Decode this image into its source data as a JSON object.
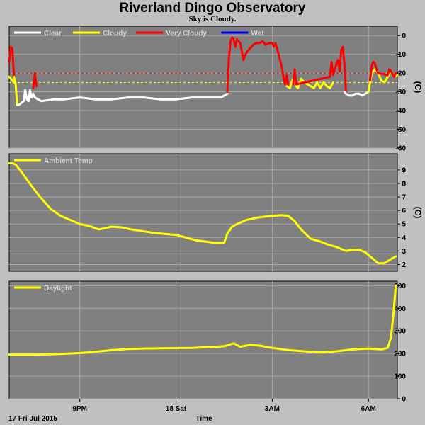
{
  "header": {
    "title": "Riverland Dingo Observatory",
    "subtitle": "Sky is Cloudy."
  },
  "colors": {
    "background": "#c0c0c0",
    "plot_bg": "#808080",
    "grid": "#a8a8a8",
    "clear": "#ffffff",
    "cloudy": "#ffff00",
    "very_cloudy": "#ff0000",
    "wet": "#0000ff",
    "threshold_red": "#ff0000",
    "threshold_yellow": "#ffff00"
  },
  "x_axis": {
    "label": "Time",
    "start_label": "17 Fri Jul 2015",
    "ticks": [
      {
        "t": 21,
        "label": "9PM"
      },
      {
        "t": 24,
        "label": "18 Sat"
      },
      {
        "t": 27,
        "label": "3AM"
      },
      {
        "t": 30,
        "label": "6AM"
      }
    ],
    "range": [
      18.8,
      30.9
    ]
  },
  "chart_data": [
    {
      "type": "line",
      "id": "sky",
      "legend": [
        "Clear",
        "Cloudy",
        "Very Cloudy",
        "Wet"
      ],
      "ylabel": "(C)",
      "ylim": [
        -60,
        5
      ],
      "yticks": [
        0,
        -10,
        -20,
        -30,
        -40,
        -50,
        -60
      ],
      "thresholds": [
        {
          "value": -20,
          "color": "#ff0000"
        },
        {
          "value": -25,
          "color": "#ffff00"
        }
      ],
      "series": [
        {
          "name": "Cloudy",
          "x": [
            18.8,
            18.95
          ],
          "y": [
            -22,
            -25
          ]
        },
        {
          "name": "Very Cloudy",
          "x": [
            18.8,
            18.85,
            18.9,
            18.95
          ],
          "y": [
            -14,
            -6,
            -7,
            -22
          ]
        },
        {
          "name": "Cloudy",
          "x": [
            18.95,
            19.0,
            19.05
          ],
          "y": [
            -22,
            -26,
            -37
          ]
        },
        {
          "name": "Clear",
          "x": [
            19.05,
            19.1,
            19.25,
            19.3,
            19.35,
            19.4,
            19.45,
            19.5,
            19.55,
            19.6,
            19.8,
            20.2,
            20.5,
            21.0,
            21.5,
            22.0,
            22.5,
            23.0,
            23.5,
            24.0,
            24.5,
            25.0,
            25.4,
            25.6
          ],
          "y": [
            -37,
            -37,
            -35,
            -29,
            -34,
            -35,
            -29,
            -33,
            -31,
            -33,
            -35,
            -34,
            -34,
            -33,
            -34,
            -34,
            -33,
            -33,
            -34,
            -34,
            -33,
            -33,
            -33,
            -31
          ]
        },
        {
          "name": "Very Cloudy",
          "x": [
            19.55,
            19.6,
            19.65
          ],
          "y": [
            -28,
            -20,
            -27
          ]
        },
        {
          "name": "Very Cloudy",
          "x": [
            25.6,
            25.65,
            25.7,
            25.75,
            25.8,
            25.85,
            25.9,
            26.0,
            26.1,
            26.2,
            26.3,
            26.4,
            26.5,
            26.6,
            26.7,
            26.8,
            26.9,
            27.0,
            27.05,
            27.1,
            27.2,
            27.3,
            27.35,
            27.4,
            27.45,
            27.5
          ],
          "y": [
            -30,
            -12,
            -3,
            -1,
            -2,
            -6,
            -2,
            -4,
            -13,
            -9,
            -7,
            -5,
            -4,
            -4,
            -3,
            -5,
            -4,
            -4,
            -6,
            -4,
            -10,
            -17,
            -22,
            -26,
            -21,
            -27
          ]
        },
        {
          "name": "Cloudy",
          "x": [
            27.45,
            27.55,
            27.6,
            27.7,
            27.75,
            27.8,
            27.9,
            28.0,
            28.1,
            28.2,
            28.3,
            28.4,
            28.5,
            28.6,
            28.7,
            28.8,
            28.9
          ],
          "y": [
            -27,
            -28,
            -25,
            -22,
            -27,
            -28,
            -23,
            -25,
            -26,
            -27,
            -28,
            -25,
            -28,
            -25,
            -27,
            -28,
            -25
          ]
        },
        {
          "name": "Very Cloudy",
          "x": [
            27.65,
            27.7,
            27.75,
            28.8,
            28.85,
            28.9,
            28.95,
            29.0,
            29.05,
            29.1,
            29.15,
            29.2,
            29.25,
            29.3
          ],
          "y": [
            -26,
            -18,
            -26,
            -22,
            -14,
            -21,
            -18,
            -15,
            -13,
            -19,
            -8,
            -6,
            -15,
            -30
          ]
        },
        {
          "name": "Clear",
          "x": [
            29.25,
            29.3,
            29.4,
            29.5,
            29.6,
            29.7,
            29.8,
            29.9,
            30.0
          ],
          "y": [
            -30,
            -31,
            -32,
            -32,
            -31,
            -31,
            -32,
            -31,
            -30
          ]
        },
        {
          "name": "Cloudy",
          "x": [
            30.0,
            30.05,
            30.1,
            30.2,
            30.3,
            30.4,
            30.5,
            30.6,
            30.7,
            30.8,
            30.9
          ],
          "y": [
            -30,
            -25,
            -20,
            -18,
            -20,
            -24,
            -25,
            -22,
            -19,
            -22,
            -21
          ]
        },
        {
          "name": "Very Cloudy",
          "x": [
            30.05,
            30.1,
            30.15,
            30.2,
            30.25,
            30.3,
            30.6,
            30.65,
            30.7,
            30.8,
            30.85
          ],
          "y": [
            -24,
            -16,
            -14,
            -15,
            -18,
            -20,
            -21,
            -18,
            -19,
            -22,
            -20
          ]
        }
      ]
    },
    {
      "type": "line",
      "id": "ambient",
      "legend": [
        "Ambient Temp"
      ],
      "ylabel": "(C)",
      "ylim": [
        1.5,
        10.2
      ],
      "yticks": [
        2,
        3,
        4,
        5,
        6,
        7,
        8,
        9
      ],
      "series": [
        {
          "name": "Ambient Temp",
          "color": "#ffff00",
          "x": [
            18.8,
            18.9,
            19.0,
            19.2,
            19.5,
            19.8,
            20.1,
            20.4,
            20.8,
            21.0,
            21.3,
            21.6,
            21.8,
            22.0,
            22.3,
            22.6,
            23.0,
            23.3,
            23.7,
            24.0,
            24.3,
            24.6,
            24.9,
            25.2,
            25.5,
            25.6,
            25.75,
            25.9,
            26.2,
            26.6,
            27.0,
            27.3,
            27.5,
            27.7,
            27.9,
            28.2,
            28.5,
            28.7,
            29.0,
            29.3,
            29.5,
            29.7,
            29.9,
            30.1,
            30.3,
            30.5,
            30.7,
            30.85
          ],
          "y": [
            9.5,
            9.5,
            9.4,
            8.8,
            7.8,
            6.9,
            6.1,
            5.6,
            5.2,
            5.0,
            4.85,
            4.6,
            4.7,
            4.8,
            4.75,
            4.6,
            4.45,
            4.35,
            4.25,
            4.2,
            4.0,
            3.8,
            3.7,
            3.6,
            3.6,
            4.3,
            4.8,
            5.0,
            5.3,
            5.5,
            5.6,
            5.65,
            5.6,
            5.2,
            4.6,
            3.9,
            3.7,
            3.5,
            3.3,
            3.0,
            3.1,
            3.1,
            2.9,
            2.5,
            2.1,
            2.1,
            2.4,
            2.6
          ]
        }
      ]
    },
    {
      "type": "line",
      "id": "daylight",
      "legend": [
        "Daylight"
      ],
      "ylabel": "",
      "ylim": [
        0,
        520
      ],
      "yticks": [
        0,
        100,
        200,
        300,
        400,
        500
      ],
      "series": [
        {
          "name": "Daylight",
          "color": "#ffff00",
          "x": [
            18.8,
            19.5,
            20.2,
            21.0,
            21.5,
            22.0,
            22.5,
            23.0,
            23.5,
            24.0,
            24.5,
            25.0,
            25.5,
            25.8,
            26.0,
            26.3,
            26.6,
            27.0,
            27.5,
            28.0,
            28.5,
            29.0,
            29.5,
            30.0,
            30.4,
            30.6,
            30.7,
            30.78,
            30.85
          ],
          "y": [
            195,
            195,
            197,
            202,
            208,
            215,
            220,
            222,
            223,
            224,
            225,
            228,
            232,
            245,
            230,
            238,
            235,
            225,
            215,
            210,
            205,
            210,
            218,
            222,
            218,
            225,
            270,
            380,
            500
          ]
        }
      ]
    }
  ]
}
